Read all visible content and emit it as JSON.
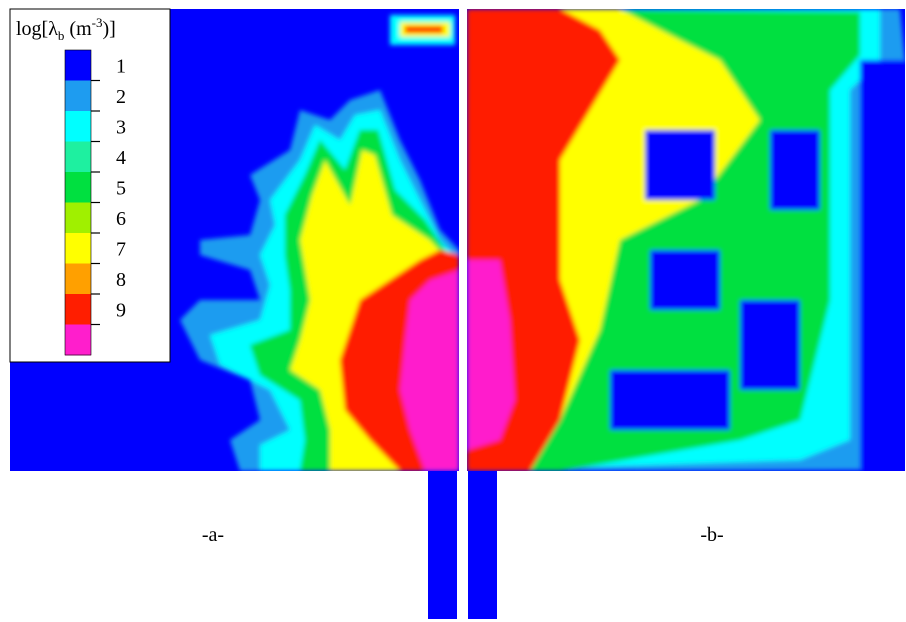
{
  "chart_data": {
    "type": "heatmap",
    "title": "",
    "colorbar": {
      "title_prefix": "log[λ",
      "title_subscript": "b",
      "title_suffix": " (m",
      "title_superscript": "-3",
      "title_end": ")]",
      "levels": [
        {
          "label": "1",
          "value": 1,
          "color": "#0000ff"
        },
        {
          "label": "2",
          "value": 2,
          "color": "#1e9cf0"
        },
        {
          "label": "3",
          "value": 3,
          "color": "#00ffff"
        },
        {
          "label": "4",
          "value": 4,
          "color": "#1ef0a0"
        },
        {
          "label": "5",
          "value": 5,
          "color": "#00e040"
        },
        {
          "label": "6",
          "value": 6,
          "color": "#a0f000"
        },
        {
          "label": "7",
          "value": 7,
          "color": "#ffff00"
        },
        {
          "label": "8",
          "value": 8,
          "color": "#ffa000"
        },
        {
          "label": "9",
          "value": 9,
          "color": "#ff1e00"
        },
        {
          "label": "",
          "value": 10,
          "color": "#ff1ecc"
        }
      ],
      "placement": "top-left"
    },
    "panels": [
      {
        "label": "-a-"
      },
      {
        "label": "-b-"
      }
    ]
  }
}
